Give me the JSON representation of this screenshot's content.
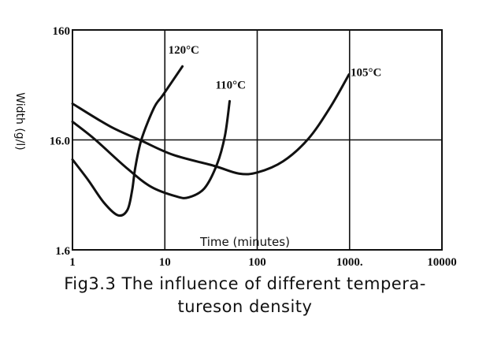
{
  "chart_data": {
    "type": "line",
    "xlabel": "Time (minutes)",
    "ylabel": "Width (g/l)",
    "x_scale": "log",
    "y_scale": "log",
    "xlim": [
      1,
      10000
    ],
    "ylim": [
      1.6,
      160
    ],
    "x_ticks": [
      1,
      10,
      100,
      1000,
      10000
    ],
    "x_tick_labels": [
      "1",
      "10",
      "100",
      "1000.",
      "10000"
    ],
    "y_ticks": [
      1.6,
      16,
      160
    ],
    "y_tick_labels": [
      "1.6",
      "16.0",
      "160"
    ],
    "grid": true,
    "series": [
      {
        "name": "120°C",
        "x": [
          1,
          1.48,
          2.19,
          3.11,
          3.94,
          4.43,
          4.79,
          5.6,
          7.66,
          9.55,
          15.5
        ],
        "y": [
          10.6,
          6.9,
          4.3,
          3.3,
          3.7,
          5.6,
          9.0,
          16.3,
          31.5,
          41,
          74.6
        ]
      },
      {
        "name": "110°C",
        "x": [
          1,
          1.73,
          3.79,
          7.08,
          13.3,
          18.1,
          26.8,
          36.7,
          44.7,
          50.3
        ],
        "y": [
          23.4,
          16.3,
          9.0,
          6.0,
          4.9,
          4.8,
          5.8,
          9.6,
          17.4,
          36
        ]
      },
      {
        "name": "105°C",
        "x": [
          1,
          2.56,
          5.6,
          12.3,
          34,
          63.5,
          101,
          190,
          356,
          615,
          985
        ],
        "y": [
          34.2,
          21.2,
          15.7,
          11.7,
          9.3,
          7.9,
          8.1,
          10.2,
          16.3,
          31.5,
          63
        ]
      }
    ],
    "line_color": "#111111"
  },
  "caption": {
    "line1": "Fig3.3 The influence of different tempera-",
    "line2": "tureson density"
  }
}
